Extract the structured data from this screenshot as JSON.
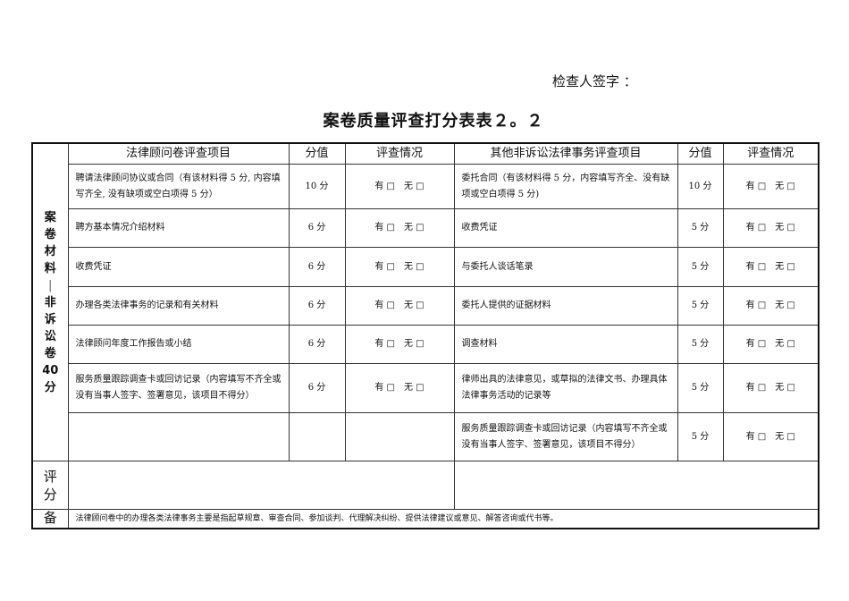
{
  "signature_label": "检查人签字 ：",
  "title": "案卷质量评查打分表表２。２",
  "side_label": [
    "案",
    "卷",
    "材",
    "料",
    "|",
    "非",
    "诉",
    "讼",
    "卷",
    "40",
    "分"
  ],
  "headers": {
    "left_item": "法律顾问卷评查项目",
    "left_score": "分值",
    "left_eval": "评查情况",
    "right_item": "其他非诉讼法律事务评查项目",
    "right_score": "分值",
    "right_eval": "评查情况"
  },
  "eval_text": "有 □　无 □",
  "rows": [
    {
      "left_item": "聘请法律顾问协议或合同（有该材料得 5 分, 内容填写齐全, 没有缺项或空白项得 5 分）",
      "left_score": "10 分",
      "left_eval": "有 □　无 □",
      "right_item": "委托合同（有该材料得 5 分，内容填写齐全、没有缺项或空白项得 5 分)",
      "right_score": "10 分",
      "right_eval": "有 □　无 □"
    },
    {
      "left_item": "聘方基本情况介绍材料",
      "left_score": "6 分",
      "left_eval": "有 □　无 □",
      "right_item": "收费凭证",
      "right_score": "5 分",
      "right_eval": "有 □　无 □"
    },
    {
      "left_item": "收费凭证",
      "left_score": "6 分",
      "left_eval": "有 □　无 □",
      "right_item": "与委托人谈话笔录",
      "right_score": "5 分",
      "right_eval": "有 □　无 □"
    },
    {
      "left_item": "办理各类法律事务的记录和有关材料",
      "left_score": "6 分",
      "left_eval": "有 □　无 □",
      "right_item": "委托人提供的证据材料",
      "right_score": "5 分",
      "right_eval": "有 □　无 □"
    },
    {
      "left_item": "法律顾问年度工作报告或小结",
      "left_score": "6 分",
      "left_eval": "有 □　无 □",
      "right_item": "调查材料",
      "right_score": "5 分",
      "right_eval": "有 □　无 □"
    },
    {
      "left_item": "服务质量跟踪调查卡或回访记录（内容填写不齐全或没有当事人签字、签署意见，该项目不得分）",
      "left_score": "6 分",
      "left_eval": "有 □　无 □",
      "right_item": "律师出具的法律意见，或草拟的法律文书、办理具体法律事务活动的记录等",
      "right_score": "5 分",
      "right_eval": "有 □　无 □"
    },
    {
      "left_item": "",
      "left_score": "",
      "left_eval": "",
      "right_item": "服务质量跟踪调查卡或回访记录（内容填写不齐全或没有当事人签字、签署意见，该项目不得分）",
      "right_score": "5 分",
      "right_eval": "有 □　无 □"
    }
  ],
  "score_label": [
    "评",
    "分"
  ],
  "note_label": "备",
  "note_text": "法律顾问卷中的办理各类法律事务主要是指起草规章、审查合同、参加谈判、代理解决纠纷、提供法律建议或意见、解答咨询或代书等。"
}
